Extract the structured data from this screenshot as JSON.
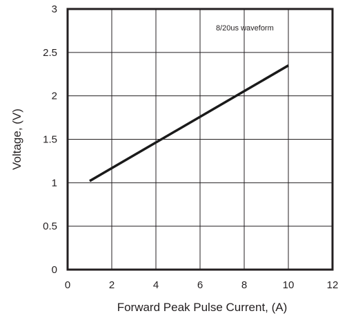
{
  "chart_data": {
    "type": "line",
    "title": "",
    "xlabel": "Forward Peak Pulse Current, (A)",
    "ylabel": "Voltage, (V)",
    "xlim": [
      0,
      12
    ],
    "ylim": [
      0,
      3
    ],
    "xticks": [
      "0",
      "2",
      "4",
      "6",
      "8",
      "10",
      "12"
    ],
    "yticks": [
      "0",
      "0.5",
      "1",
      "1.5",
      "2",
      "2.5",
      "3"
    ],
    "grid": true,
    "annotation": "8/20us waveform",
    "series": [
      {
        "x": [
          1,
          10
        ],
        "y": [
          1.02,
          2.35
        ],
        "color": "#1a1a1a"
      }
    ]
  }
}
